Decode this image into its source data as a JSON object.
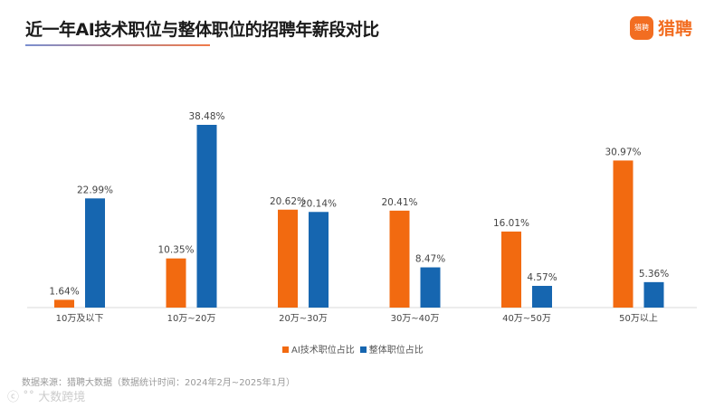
{
  "header": {
    "title": "近一年AI技术职位与整体职位的招聘年薪段对比",
    "logo_text": "猎聘",
    "logo_icon_text": "猎聘"
  },
  "footer": {
    "source": "数据来源：猎聘大数据（数据统计时间：2024年2月~2025年1月）",
    "watermark": "大数跨境"
  },
  "chart_data": {
    "type": "bar",
    "title": "近一年AI技术职位与整体职位的招聘年薪段对比",
    "categories": [
      "10万及以下",
      "10万~20万",
      "20万~30万",
      "30万~40万",
      "40万~50万",
      "50万以上"
    ],
    "series": [
      {
        "name": "AI技术职位占比",
        "color": "#f26a10",
        "values": [
          1.64,
          10.35,
          20.62,
          20.41,
          16.01,
          30.97
        ]
      },
      {
        "name": "整体职位占比",
        "color": "#1666b0",
        "values": [
          22.99,
          38.48,
          20.14,
          8.47,
          4.57,
          5.36
        ]
      }
    ],
    "value_format": "percent",
    "ylim": [
      0,
      40
    ],
    "grid": false,
    "legend_position": "bottom-center"
  }
}
